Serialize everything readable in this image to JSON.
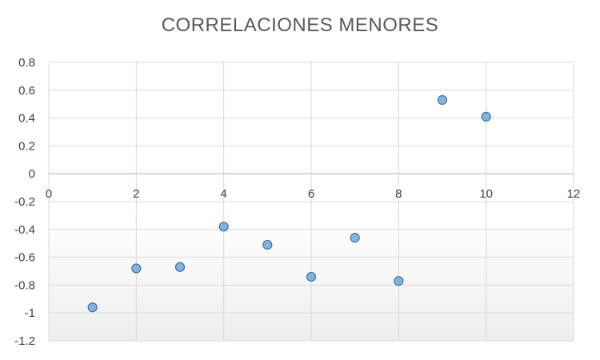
{
  "chart_data": {
    "type": "scatter",
    "title": "CORRELACIONES  MENORES",
    "xlabel": "",
    "ylabel": "",
    "xlim": [
      0,
      12
    ],
    "ylim": [
      -1.2,
      0.8
    ],
    "x_ticks": [
      0,
      2,
      4,
      6,
      8,
      10,
      12
    ],
    "y_ticks": [
      0.8,
      0.6,
      0.4,
      0.2,
      0,
      -0.2,
      -0.4,
      -0.6,
      -0.8,
      -1,
      -1.2
    ],
    "grid": true,
    "legend": "none",
    "series": [
      {
        "color": "#5b9bd5",
        "points": [
          {
            "x": 1,
            "y": -0.96
          },
          {
            "x": 2,
            "y": -0.68
          },
          {
            "x": 3,
            "y": -0.67
          },
          {
            "x": 4,
            "y": -0.38
          },
          {
            "x": 5,
            "y": -0.51
          },
          {
            "x": 6,
            "y": -0.74
          },
          {
            "x": 7,
            "y": -0.46
          },
          {
            "x": 8,
            "y": -0.77
          },
          {
            "x": 9,
            "y": 0.53
          },
          {
            "x": 10,
            "y": 0.41
          }
        ]
      }
    ]
  }
}
